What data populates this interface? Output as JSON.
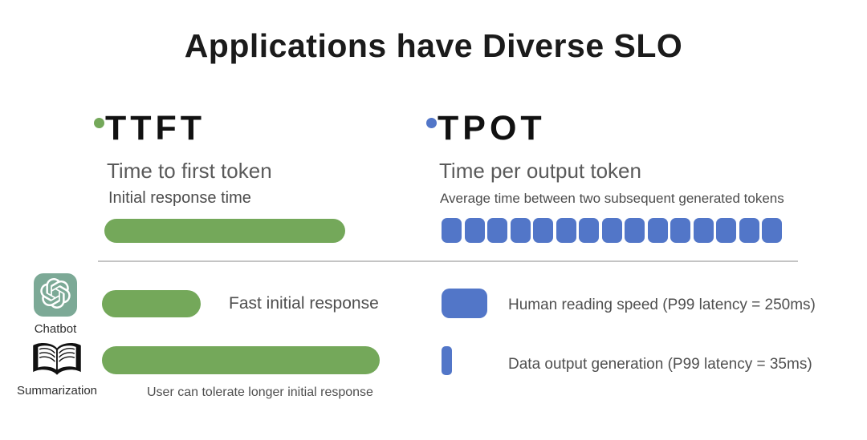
{
  "title": "Applications have Diverse SLO",
  "colors": {
    "green": "#74a85a",
    "blue": "#5276c8",
    "icon_teal": "#7ca996",
    "divider": "#c4c4c4",
    "title_text": "#1b1b1b",
    "body_text": "#4f4f4f"
  },
  "metrics": {
    "ttft": {
      "acronym": "TTFT",
      "name": "Time to first token",
      "description": "Initial response time",
      "bullet_color": "#74a85a"
    },
    "tpot": {
      "acronym": "TPOT",
      "name": "Time per output token",
      "description": "Average time between two subsequent generated tokens",
      "bullet_color": "#5276c8",
      "block_count": 15
    }
  },
  "applications": [
    {
      "icon": "chatgpt-logo",
      "label": "Chatbot",
      "ttft_note": "Fast initial response",
      "tpot_note": "Human reading speed (P99 latency = 250ms)"
    },
    {
      "icon": "open-book",
      "label": "Summarization",
      "ttft_note": "User can tolerate longer initial response",
      "tpot_note": "Data output generation (P99 latency = 35ms)"
    }
  ]
}
